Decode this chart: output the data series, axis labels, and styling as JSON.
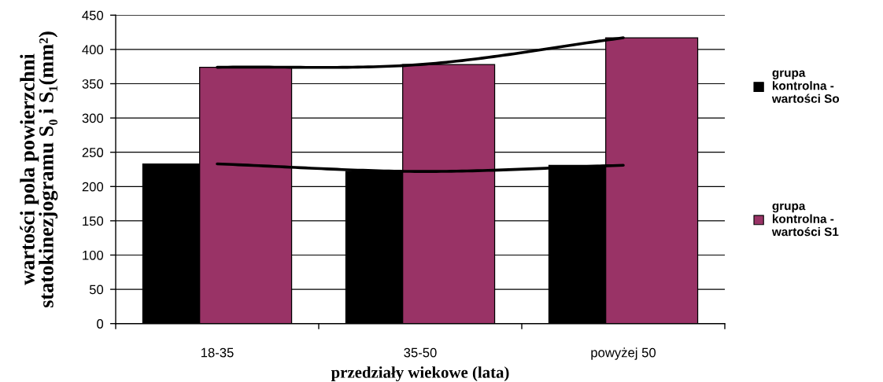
{
  "chart_data": {
    "type": "bar",
    "categories": [
      "18-35",
      "35-50",
      "powyżej 50"
    ],
    "series": [
      {
        "name": "grupa kontrolna - wartości So",
        "color": "#000000",
        "values": [
          233,
          222,
          231
        ]
      },
      {
        "name": "grupa kontrolna - wartości S1",
        "color": "#993366",
        "values": [
          374,
          378,
          417
        ]
      },
      {
        "type": "line",
        "color": "#000000",
        "values": [
          374,
          378,
          417
        ]
      },
      {
        "type": "line",
        "color": "#000000",
        "values": [
          233,
          222,
          231
        ]
      }
    ],
    "xlabel": "przedziały wiekowe (lata)",
    "ylabel": "wartości pola powierzchni\nstatokinezjogramu S₀ i S₁(mm²)",
    "ylim": [
      0,
      450
    ],
    "yticks": [
      0,
      50,
      100,
      150,
      200,
      250,
      300,
      350,
      400,
      450
    ],
    "grid": "y",
    "legend": "right"
  }
}
